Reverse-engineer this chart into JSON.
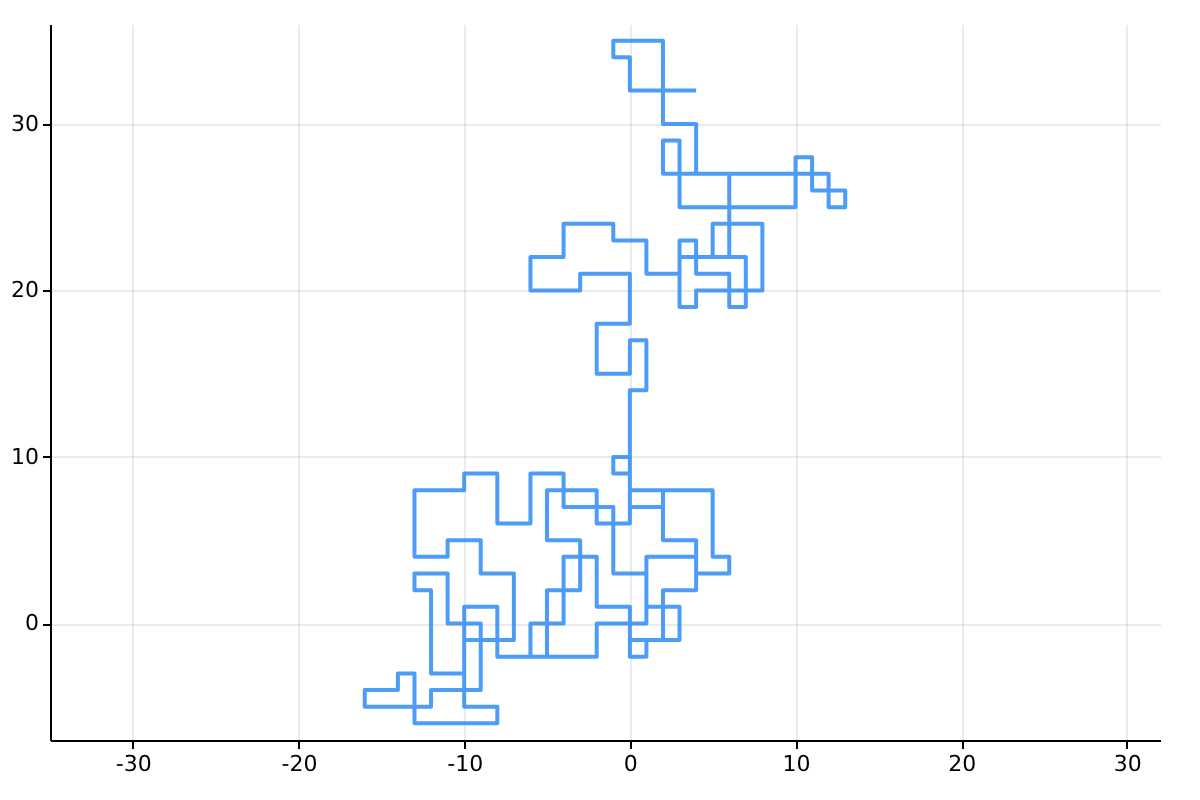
{
  "chart_data": {
    "type": "line",
    "grid": true,
    "line_style": "solid",
    "xlim": [
      -35,
      32
    ],
    "ylim": [
      -7,
      36
    ],
    "xticks": [
      -30,
      -20,
      -10,
      0,
      10,
      20,
      30
    ],
    "yticks": [
      0,
      10,
      20,
      30
    ],
    "series": [
      {
        "color": "#2e8bf6",
        "x": [
          0,
          0,
          2,
          2,
          4,
          4,
          2,
          2,
          0,
          0,
          -2,
          -2,
          -5,
          -5,
          -3,
          -3,
          -5,
          -5,
          -8,
          -8,
          -10,
          -10,
          -12,
          -12,
          -13,
          -13,
          -11,
          -11,
          -9,
          -9,
          -12,
          -12,
          -16,
          -16,
          -14,
          -14,
          -13,
          -13,
          -8,
          -8,
          -10,
          -10,
          -7,
          -7,
          -9,
          -9,
          -11,
          -11,
          -13,
          -13,
          -10,
          -10,
          -8,
          -8,
          -6,
          -6,
          -4,
          -4,
          -1,
          -1,
          1,
          1,
          3,
          3,
          1,
          1,
          0,
          0,
          -2,
          -2,
          -4,
          -4,
          -6,
          -6,
          -2,
          -2,
          1,
          1,
          4,
          4,
          6,
          6,
          5,
          5,
          2,
          2,
          0,
          0,
          -1,
          -1,
          0,
          0,
          1,
          1,
          0,
          0,
          -2,
          -2,
          0,
          0,
          -3,
          -3,
          -6,
          -6,
          -4,
          -4,
          -1,
          -1,
          1,
          1,
          3,
          3,
          4,
          4,
          6,
          6,
          7,
          7,
          5,
          5,
          8,
          8,
          4,
          4,
          3,
          3,
          6,
          6,
          2,
          2,
          3,
          3,
          10,
          10,
          11,
          11,
          13,
          13,
          12,
          12,
          4,
          4,
          2,
          2,
          0,
          0,
          -1,
          -1,
          2,
          2,
          4
        ],
        "values": [
          0,
          -1,
          -1,
          2,
          2,
          5,
          5,
          8,
          8,
          6,
          6,
          8,
          8,
          5,
          5,
          2,
          2,
          -2,
          -2,
          1,
          1,
          -3,
          -3,
          2,
          2,
          3,
          3,
          0,
          0,
          -4,
          -4,
          -5,
          -5,
          -4,
          -4,
          -3,
          -3,
          -6,
          -6,
          -5,
          -5,
          -1,
          -1,
          3,
          3,
          5,
          5,
          4,
          4,
          8,
          8,
          9,
          9,
          6,
          6,
          9,
          9,
          7,
          7,
          3,
          3,
          1,
          1,
          -1,
          -1,
          -2,
          -2,
          1,
          1,
          4,
          4,
          0,
          0,
          -2,
          -2,
          0,
          0,
          4,
          4,
          3,
          3,
          4,
          4,
          8,
          8,
          7,
          7,
          10,
          10,
          9,
          9,
          14,
          14,
          17,
          17,
          15,
          15,
          18,
          18,
          21,
          21,
          20,
          20,
          22,
          22,
          24,
          24,
          23,
          23,
          21,
          21,
          23,
          23,
          21,
          21,
          19,
          19,
          22,
          22,
          24,
          24,
          20,
          20,
          19,
          19,
          22,
          22,
          27,
          27,
          29,
          29,
          25,
          25,
          28,
          28,
          26,
          26,
          25,
          25,
          27,
          27,
          30,
          30,
          32,
          32,
          34,
          34,
          35,
          35,
          32,
          32
        ]
      }
    ]
  }
}
